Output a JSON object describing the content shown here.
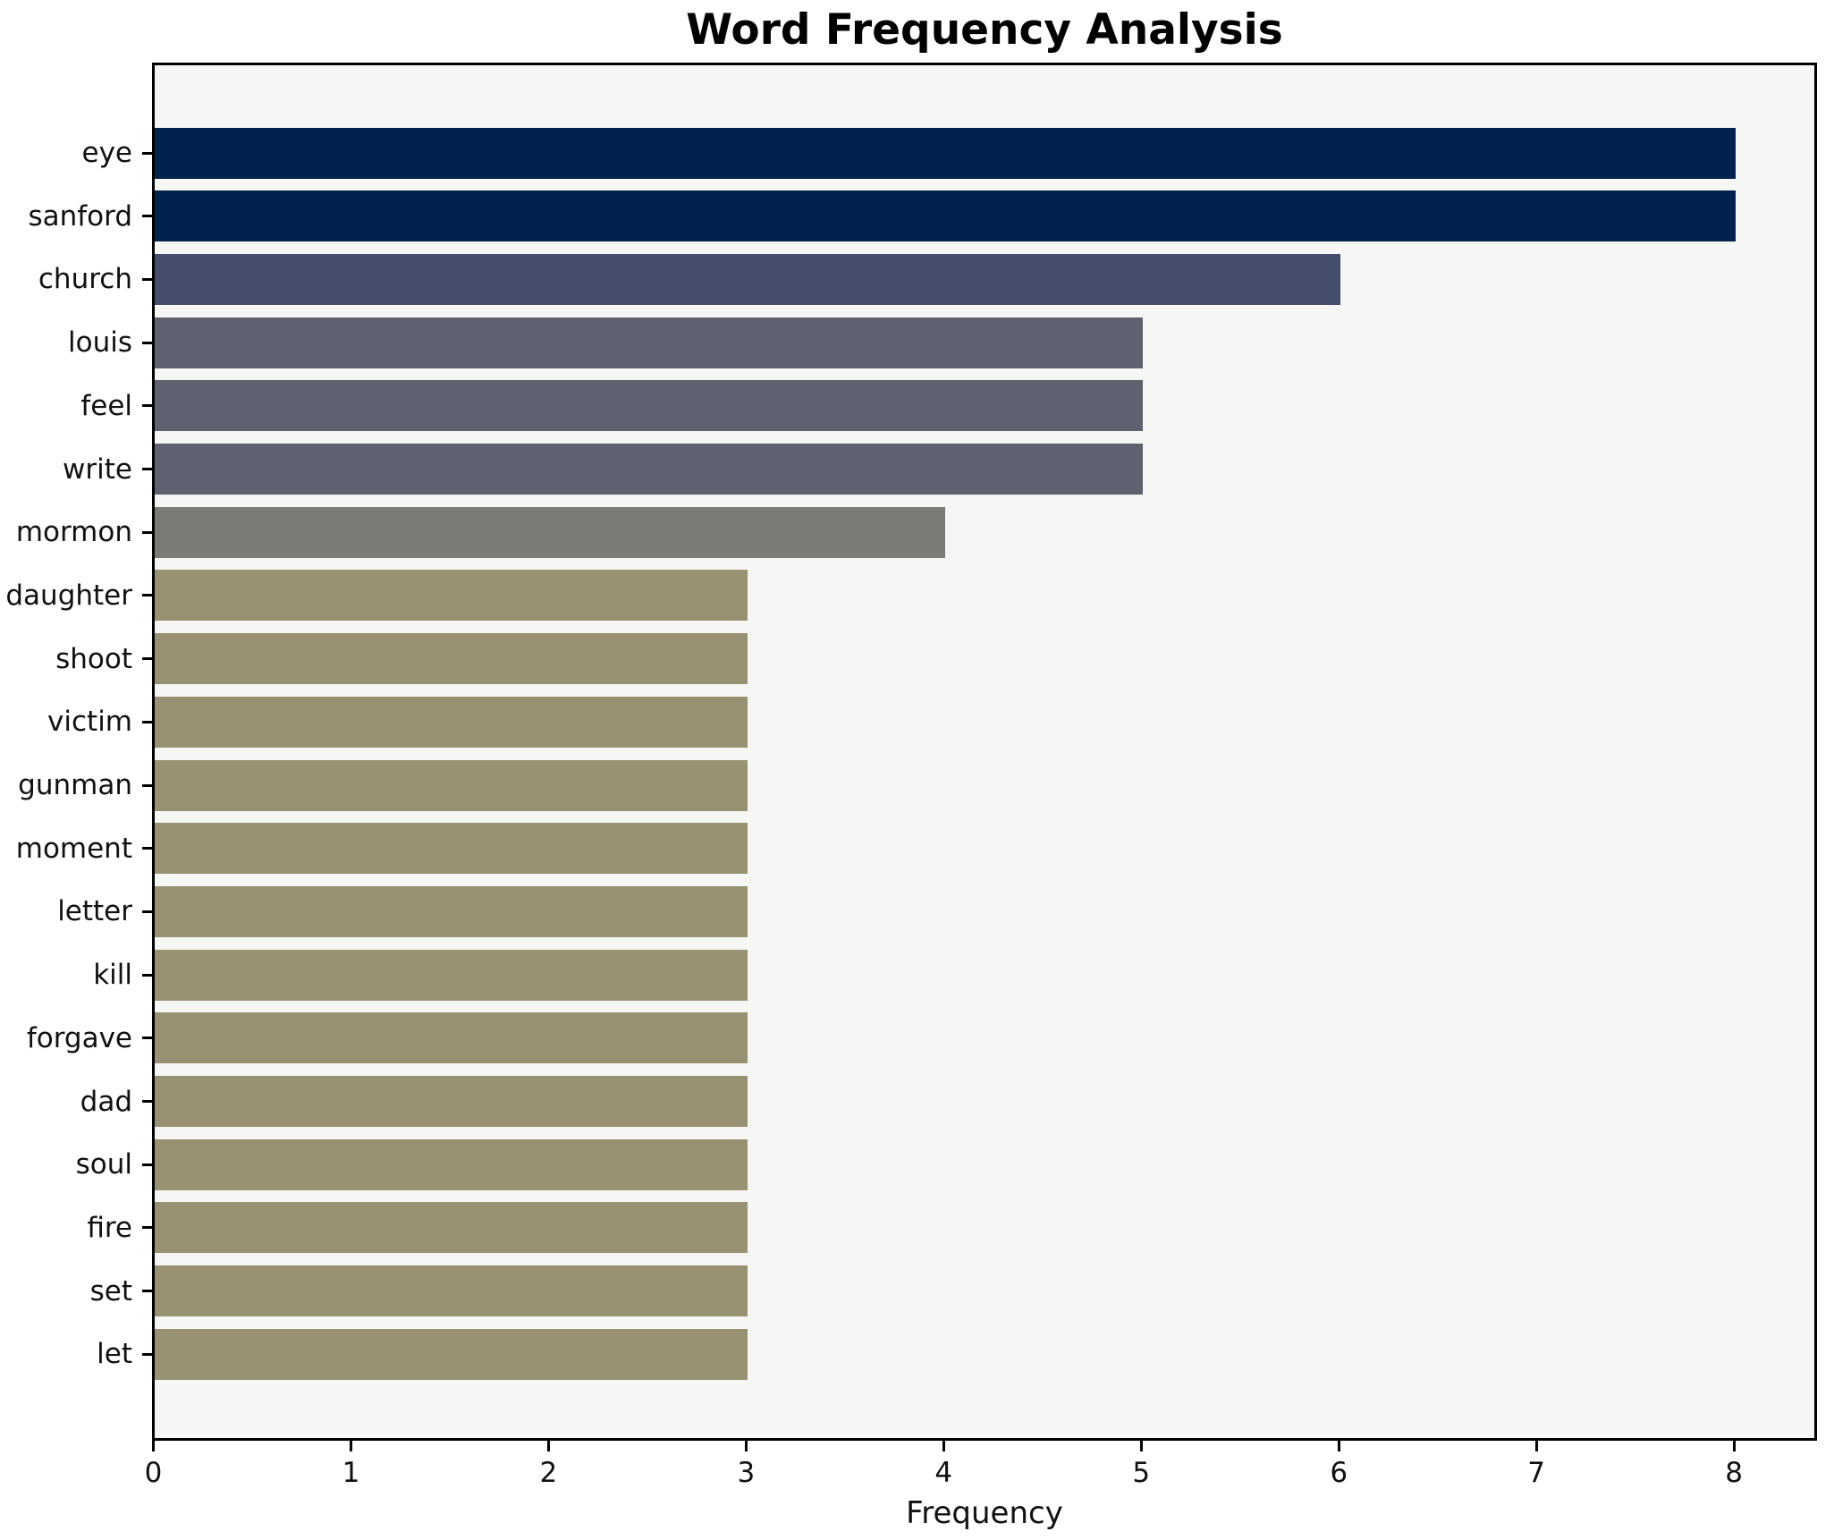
{
  "chart_data": {
    "type": "bar",
    "orientation": "horizontal",
    "title": "Word Frequency Analysis",
    "xlabel": "Frequency",
    "ylabel": "",
    "xlim": [
      0,
      8.4
    ],
    "x_ticks": [
      0,
      1,
      2,
      3,
      4,
      5,
      6,
      7,
      8
    ],
    "grid": false,
    "legend": false,
    "categories": [
      "eye",
      "sanford",
      "church",
      "louis",
      "feel",
      "write",
      "mormon",
      "daughter",
      "shoot",
      "victim",
      "gunman",
      "moment",
      "letter",
      "kill",
      "forgave",
      "dad",
      "soul",
      "fire",
      "set",
      "let"
    ],
    "values": [
      8,
      8,
      6,
      5,
      5,
      5,
      4,
      3,
      3,
      3,
      3,
      3,
      3,
      3,
      3,
      3,
      3,
      3,
      3,
      3
    ],
    "bar_colors": [
      "#02224e",
      "#02224e",
      "#454f6d",
      "#5e6270",
      "#5e6270",
      "#5e6270",
      "#7b7a76",
      "#999272",
      "#999272",
      "#999272",
      "#999272",
      "#999272",
      "#999272",
      "#999272",
      "#999272",
      "#999272",
      "#999272",
      "#999272",
      "#999272",
      "#999272"
    ]
  },
  "style": {
    "figure_bg": "#ffffff",
    "plot_bg": "#f6f6f4",
    "axis_color": "#000000",
    "text_color": "#111111"
  }
}
